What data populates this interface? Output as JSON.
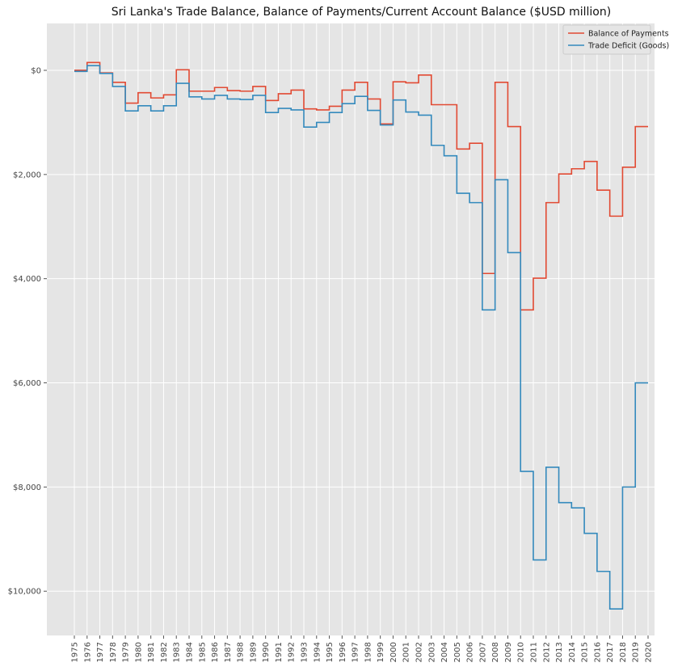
{
  "chart_data": {
    "type": "line",
    "step": true,
    "title": "Sri Lanka's Trade Balance, Balance of Payments/Current Account Balance ($USD million)",
    "xlabel": "",
    "ylabel": "",
    "x": [
      "1975",
      "1976",
      "1977",
      "1978",
      "1979",
      "1980",
      "1981",
      "1982",
      "1983",
      "1984",
      "1985",
      "1986",
      "1987",
      "1988",
      "1989",
      "1990",
      "1991",
      "1992",
      "1993",
      "1994",
      "1995",
      "1996",
      "1997",
      "1998",
      "1999",
      "2000",
      "2001",
      "2002",
      "2003",
      "2004",
      "2005",
      "2006",
      "2007",
      "2008",
      "2009",
      "2010",
      "2011",
      "2012",
      "2013",
      "2014",
      "2015",
      "2016",
      "2017",
      "2018",
      "2019",
      "2020"
    ],
    "y_inverted": true,
    "ylim": [
      -900,
      10850
    ],
    "yticks": [
      0,
      2000,
      4000,
      6000,
      8000,
      10000
    ],
    "ytick_labels": [
      "$0",
      "$2,000",
      "$4,000",
      "$6,000",
      "$8,000",
      "$10,000"
    ],
    "grid": true,
    "legend_position": "top-right",
    "series": [
      {
        "name": "Balance of Payments",
        "color": "#e24a33",
        "values": [
          0,
          -150,
          50,
          230,
          630,
          430,
          530,
          470,
          -10,
          400,
          400,
          330,
          390,
          400,
          310,
          580,
          450,
          380,
          740,
          760,
          690,
          380,
          230,
          550,
          1030,
          220,
          240,
          90,
          660,
          660,
          1510,
          1400,
          3900,
          230,
          1080,
          4600,
          3990,
          2540,
          1990,
          1890,
          1750,
          2300,
          2800,
          1860,
          1080,
          1080
        ]
      },
      {
        "name": "Trade Deficit (Goods)",
        "color": "#348abd",
        "values": [
          20,
          -90,
          60,
          310,
          780,
          680,
          780,
          680,
          250,
          510,
          550,
          480,
          550,
          560,
          480,
          810,
          730,
          760,
          1090,
          1000,
          810,
          640,
          500,
          770,
          1050,
          570,
          800,
          860,
          1440,
          1640,
          2360,
          2540,
          4600,
          2100,
          3500,
          7700,
          9400,
          7620,
          8300,
          8400,
          8890,
          9620,
          10340,
          8000,
          6000,
          6000
        ]
      }
    ]
  }
}
